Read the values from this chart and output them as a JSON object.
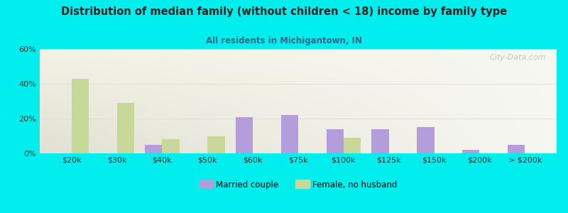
{
  "title": "Distribution of median family (without children < 18) income by family type",
  "subtitle": "All residents in Michigantown, IN",
  "categories": [
    "$20k",
    "$30k",
    "$40k",
    "$50k",
    "$60k",
    "$75k",
    "$100k",
    "$125k",
    "$150k",
    "$200k",
    "> $200k"
  ],
  "married_couple": [
    0,
    0,
    5,
    0,
    21,
    22,
    14,
    14,
    15,
    2,
    5
  ],
  "female_no_husband": [
    43,
    29,
    8,
    10,
    0,
    0,
    9,
    0,
    0,
    0,
    0
  ],
  "married_color": "#b39ddb",
  "female_color": "#c8d898",
  "background_color": "#00eeee",
  "title_color": "#222222",
  "subtitle_color": "#336688",
  "ylim": [
    0,
    60
  ],
  "yticks": [
    0,
    20,
    40,
    60
  ],
  "bar_width": 0.38,
  "watermark": "City-Data.com"
}
